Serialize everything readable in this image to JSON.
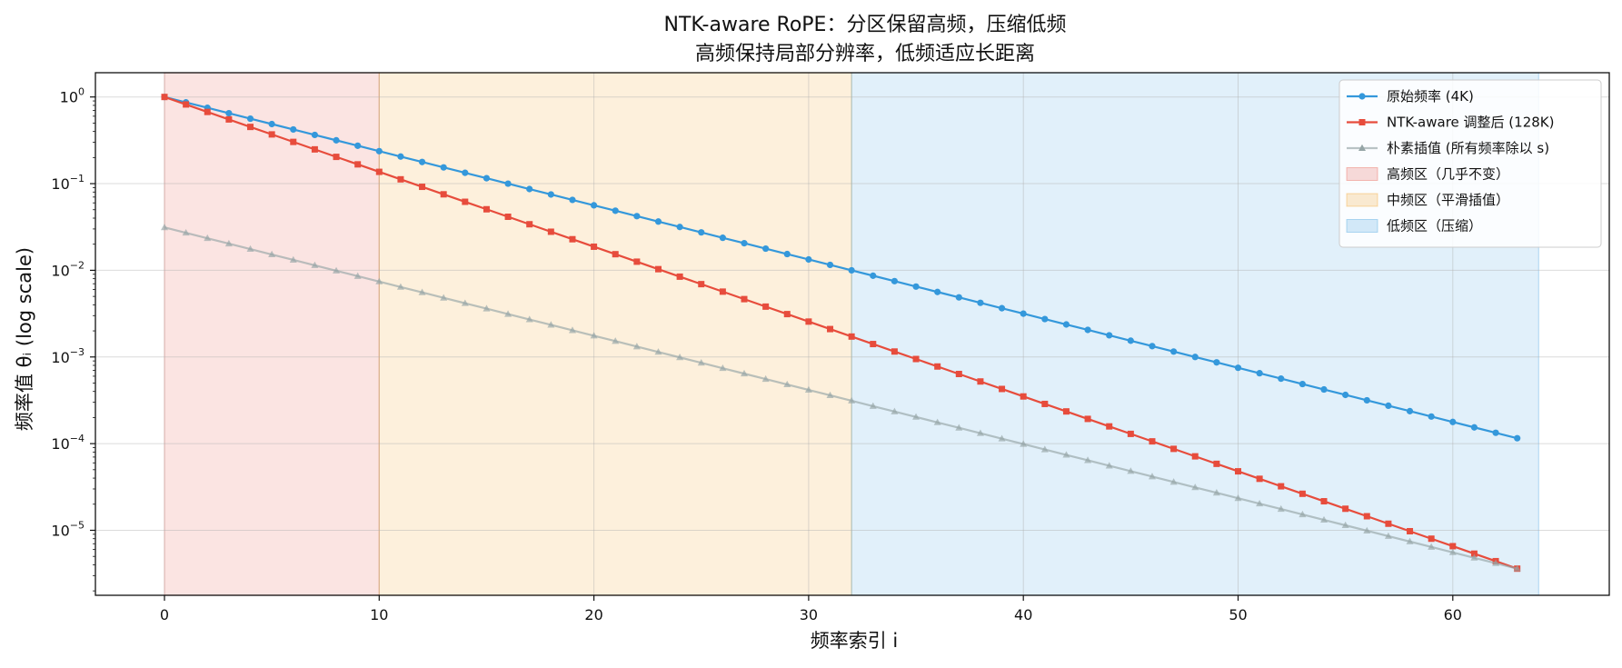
{
  "chart_data": {
    "type": "line",
    "title": "NTK-aware RoPE：分区保留高频，压缩低频",
    "subtitle": "高频保持局部分辨率，低频适应长距离",
    "xlabel": "频率索引 i",
    "ylabel": "频率值 θᵢ (log scale)",
    "y_scale": "log",
    "xlim": [
      -3.2,
      66.2
    ],
    "ylim_log10": [
      -5.75,
      0.28
    ],
    "x_ticks": [
      0,
      10,
      20,
      30,
      40,
      50,
      60
    ],
    "y_ticks": [
      {
        "base": "10",
        "exp": "0",
        "log": 0
      },
      {
        "base": "10",
        "exp": "−1",
        "log": -1
      },
      {
        "base": "10",
        "exp": "−2",
        "log": -2
      },
      {
        "base": "10",
        "exp": "−3",
        "log": -3
      },
      {
        "base": "10",
        "exp": "−4",
        "log": -4
      },
      {
        "base": "10",
        "exp": "−5",
        "log": -5
      }
    ],
    "grid": true,
    "legend_position": "top-right",
    "regions": [
      {
        "name": "高频区（几乎不变）",
        "x": [
          0,
          10
        ],
        "color": "#e74c3c",
        "alpha": 0.15
      },
      {
        "name": "中频区（平滑插值）",
        "x": [
          10,
          32
        ],
        "color": "#f39c12",
        "alpha": 0.15
      },
      {
        "name": "低频区（压缩）",
        "x": [
          32,
          64
        ],
        "color": "#3498db",
        "alpha": 0.15
      }
    ],
    "series": [
      {
        "name": "原始频率 (4K)",
        "color": "#3498db",
        "marker": "circle",
        "x_start": 0,
        "x_end": 63,
        "log10_y_start": 0.0,
        "log10_y_end": -3.9375
      },
      {
        "name": "NTK-aware 调整后 (128K)",
        "color": "#e74c3c",
        "marker": "square",
        "x_start": 0,
        "x_end": 63,
        "log10_y_start": 0.0,
        "log10_y_end": -5.4425
      },
      {
        "name": "朴素插值 (所有频率除以 s)",
        "color": "#95a5a6",
        "marker": "triangle",
        "x_start": 0,
        "x_end": 63,
        "log10_y_start": -1.505,
        "log10_y_end": -5.4425
      }
    ]
  }
}
